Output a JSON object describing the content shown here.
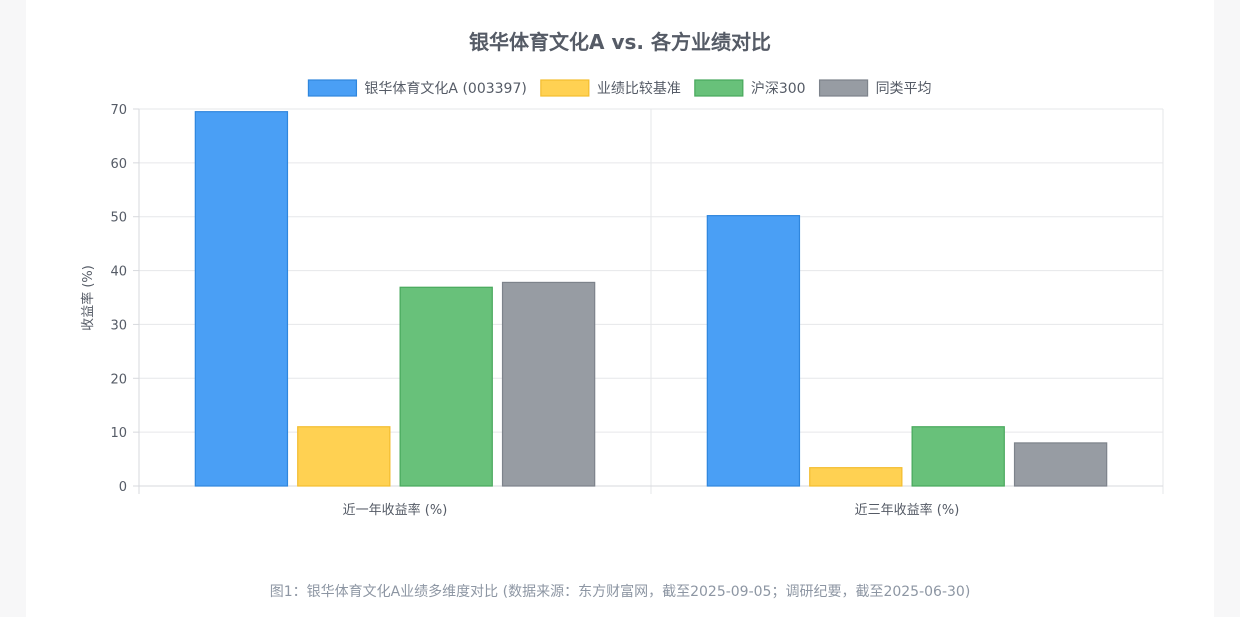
{
  "chart_data": {
    "type": "bar",
    "title": "银华体育文化A vs. 各方业绩对比",
    "ylabel": "收益率 (%)",
    "xlabel": "",
    "ylim": [
      0,
      70
    ],
    "yticks": [
      0,
      10,
      20,
      30,
      40,
      50,
      60,
      70
    ],
    "grid": true,
    "legend_position": "top",
    "categories": [
      "近一年收益率 (%)",
      "近三年收益率 (%)"
    ],
    "series": [
      {
        "name": "银华体育文化A (003397)",
        "values": [
          69.5,
          50.2
        ],
        "color": "#4a9ff5",
        "border": "#2f86dd"
      },
      {
        "name": "业绩比较基准",
        "values": [
          11.0,
          3.4
        ],
        "color": "#ffd152",
        "border": "#f3bd2f"
      },
      {
        "name": "沪深300",
        "values": [
          36.9,
          11.0
        ],
        "color": "#68c17a",
        "border": "#48a85c"
      },
      {
        "name": "同类平均",
        "values": [
          37.8,
          8.0
        ],
        "color": "#979ca3",
        "border": "#7d838b"
      }
    ]
  },
  "caption": "图1：银华体育文化A业绩多维度对比 (数据来源：东方财富网，截至2025-09-05；调研纪要，截至2025-06-30)"
}
